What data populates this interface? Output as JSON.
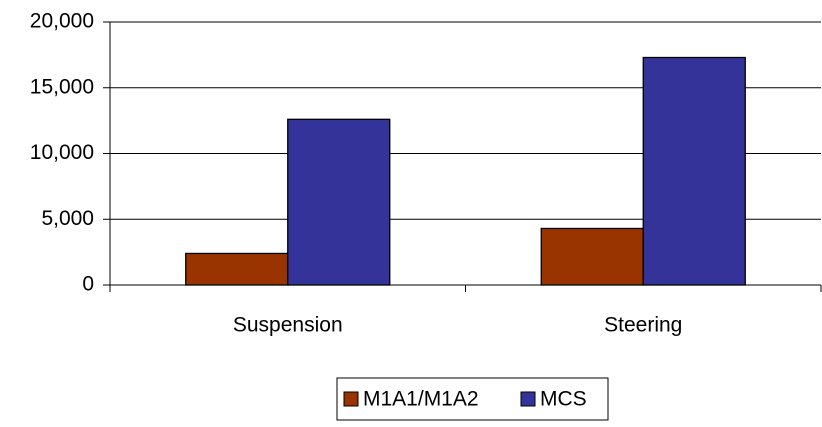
{
  "chart_data": {
    "type": "bar",
    "categories": [
      "Suspension",
      "Steering"
    ],
    "series": [
      {
        "name": "M1A1/M1A2",
        "color": "#993300",
        "values": [
          2400,
          4300
        ]
      },
      {
        "name": "MCS",
        "color": "#333399",
        "values": [
          12600,
          17300
        ]
      }
    ],
    "ylim": [
      0,
      20000
    ],
    "yticks": [
      0,
      {
        "value": 5000,
        "label": "5,000"
      },
      {
        "value": 10000,
        "label": "10,000"
      },
      {
        "value": 15000,
        "label": "15,000"
      },
      {
        "value": 20000,
        "label": "20,000"
      }
    ],
    "grid": true,
    "legend": "bottom"
  }
}
